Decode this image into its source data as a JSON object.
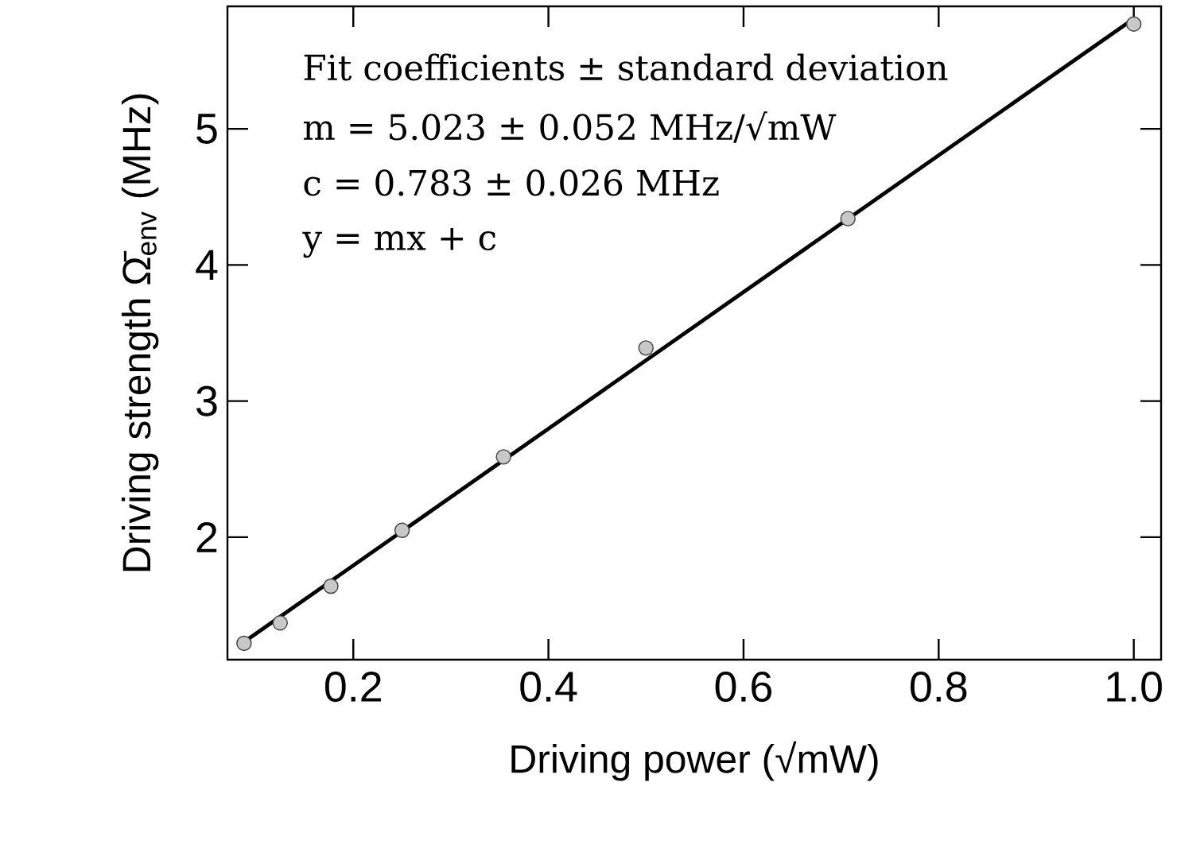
{
  "chart_data": {
    "type": "scatter",
    "xlabel": "Driving power (√mW)",
    "ylabel": "Driving strength  Ω̄$_{env}$ (MHz)",
    "annotations": [
      "Fit coefficients ± standard deviation",
      "m = 5.023 ± 0.052 MHz/√mW",
      "c = 0.783 ± 0.026 MHz",
      "y = mx + c"
    ],
    "series": [
      {
        "marker": "circle",
        "color": "#c8c8c8",
        "x": [
          0.088,
          0.125,
          0.177,
          0.25,
          0.354,
          0.5,
          0.707,
          1.0
        ],
        "values": [
          1.22,
          1.37,
          1.64,
          2.05,
          2.59,
          3.39,
          4.34,
          5.77
        ]
      },
      {
        "type": "line",
        "color": "#000000",
        "x": [
          0.088,
          1.0
        ],
        "values": [
          1.23,
          5.81
        ]
      }
    ],
    "xlim": [
      0.071,
      1.028
    ],
    "ylim": [
      1.1,
      5.9
    ],
    "xticks": [
      {
        "value": 0.2,
        "label": "0.2"
      },
      {
        "value": 0.4,
        "label": "0.4"
      },
      {
        "value": 0.6,
        "label": "0.6"
      },
      {
        "value": 0.8,
        "label": "0.8"
      },
      {
        "value": 1.0,
        "label": "1.0"
      }
    ],
    "yticks": [
      2,
      3,
      4,
      5
    ]
  }
}
